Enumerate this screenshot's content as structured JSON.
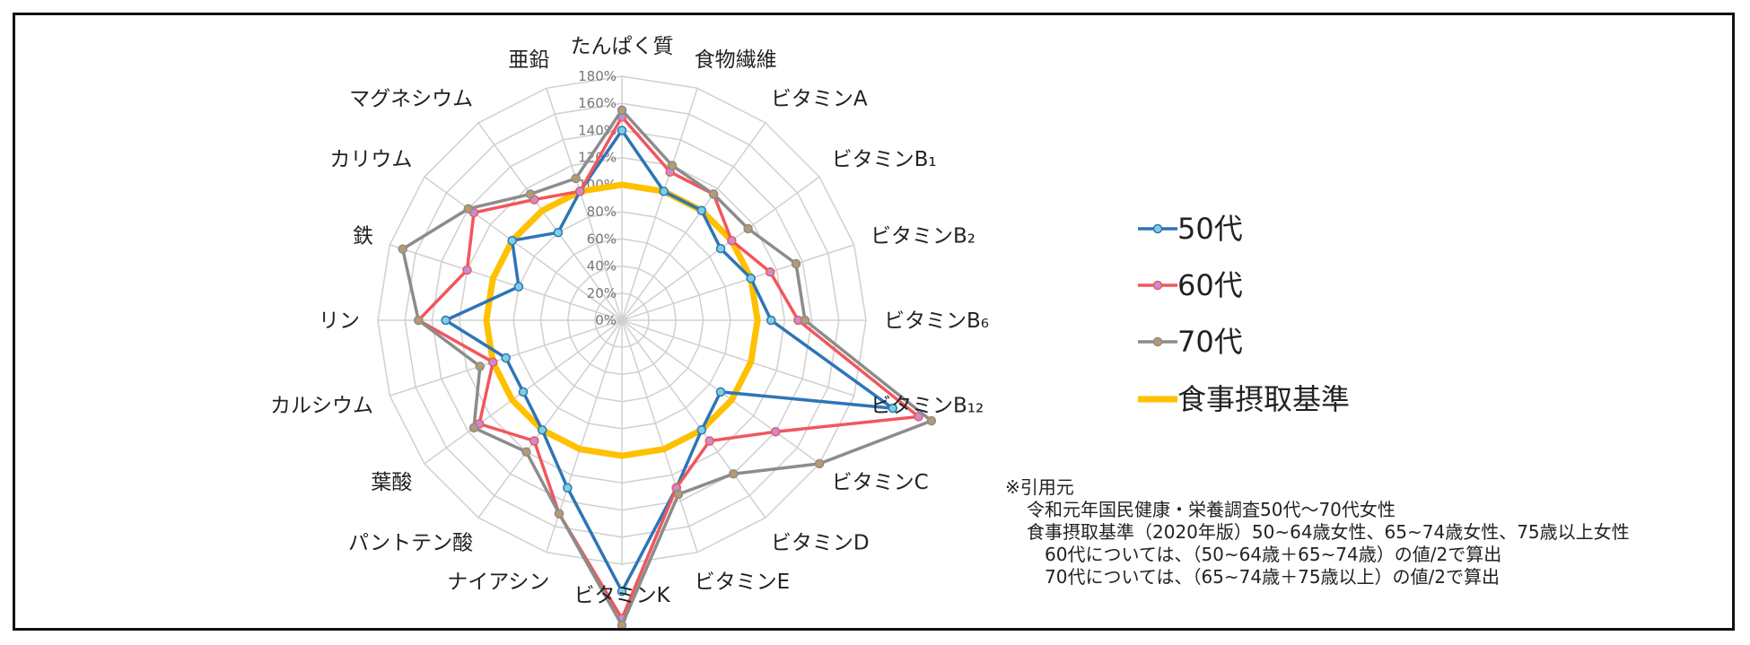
{
  "chart_data": {
    "type": "radar",
    "axes": [
      "たんぱく質",
      "食物繊維",
      "ビタミンA",
      "ビタミンB₁",
      "ビタミンB₂",
      "ビタミンB₆",
      "ビタミンB₁₂",
      "ビタミンC",
      "ビタミンD",
      "ビタミンE",
      "ビタミンK",
      "ナイアシン",
      "パントテン酸",
      "葉酸",
      "カルシウム",
      "リン",
      "鉄",
      "カリウム",
      "マグネシウム",
      "亜鉛"
    ],
    "ticks": [
      "0%",
      "20%",
      "40%",
      "60%",
      "80%",
      "100%",
      "120%",
      "140%",
      "160%",
      "180%"
    ],
    "rmax": 180,
    "series": [
      {
        "name": "50代",
        "color": "#2e75b6",
        "values": [
          140,
          100,
          100,
          90,
          100,
          110,
          210,
          90,
          100,
          130,
          200,
          130,
          100,
          90,
          90,
          130,
          80,
          100,
          80,
          100
        ]
      },
      {
        "name": "60代",
        "color": "#f0575c",
        "values": [
          150,
          115,
          115,
          100,
          115,
          130,
          230,
          140,
          110,
          130,
          220,
          150,
          110,
          130,
          100,
          150,
          120,
          135,
          110,
          100
        ]
      },
      {
        "name": "70代",
        "color": "#8c8c8c",
        "values": [
          155,
          120,
          115,
          115,
          135,
          135,
          240,
          180,
          140,
          135,
          225,
          150,
          120,
          135,
          110,
          150,
          170,
          140,
          115,
          110
        ]
      },
      {
        "name": "食事摂取基準",
        "color": "#ffc000",
        "values": [
          100,
          100,
          100,
          100,
          100,
          100,
          100,
          100,
          100,
          100,
          100,
          100,
          100,
          100,
          100,
          100,
          100,
          100,
          100,
          100
        ]
      }
    ]
  },
  "notes": [
    "※引用元",
    "令和元年国民健康・栄養調査50代～70代女性",
    "食事摂取基準（2020年版）50~64歳女性、65~74歳女性、75歳以上女性",
    "60代については、（50~64歳＋65~74歳）の値/2で算出",
    "70代については、（65~74歳＋75歳以上）の値/2で算出"
  ]
}
